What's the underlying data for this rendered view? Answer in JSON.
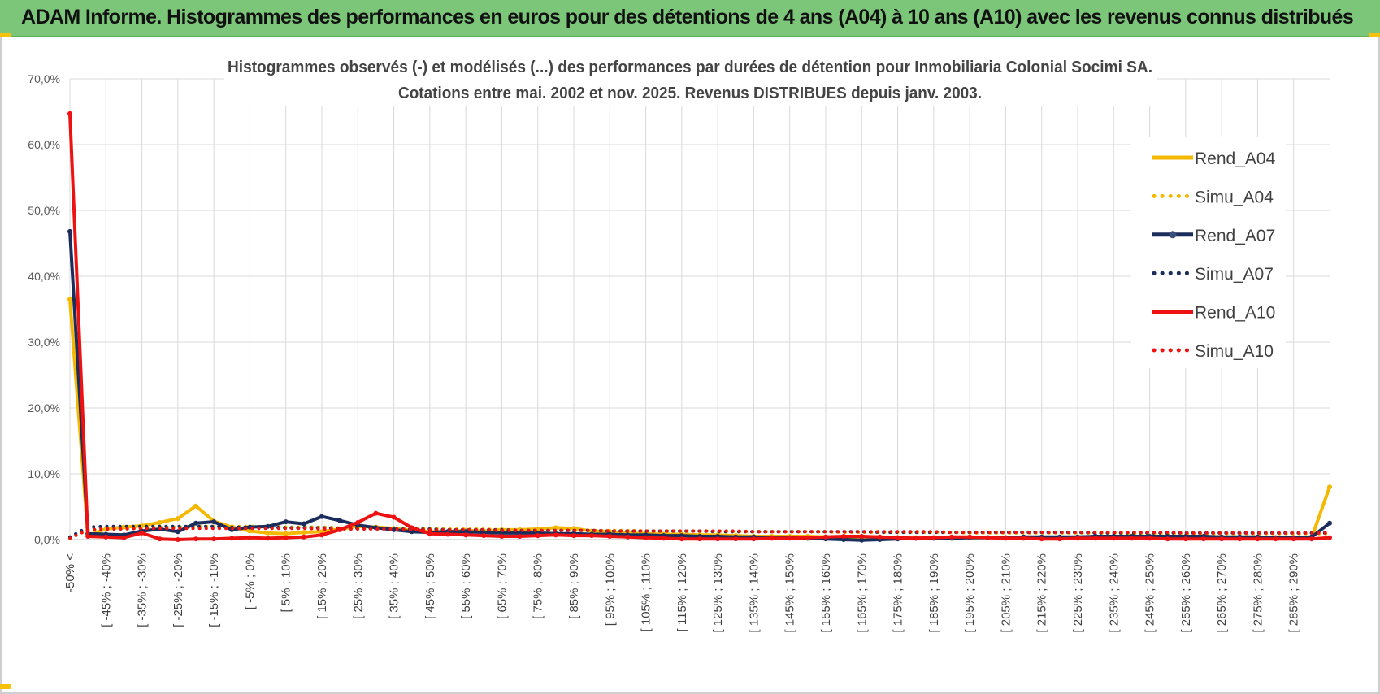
{
  "banner": {
    "title": "ADAM Informe. Histogrammes des performances en euros pour des détentions de 4 ans (A04) à 10 ans (A10) avec les revenus connus distribués"
  },
  "colors": {
    "banner_bg": "#7cc67a",
    "a04": "#f5b800",
    "a07": "#1b2d5c",
    "a10": "#ee1111",
    "grid": "#d9d9d9"
  },
  "chart_data": {
    "type": "line",
    "title": "Histogrammes observés (-) et modélisés (...) des performances par durées de détention pour Inmobiliaria Colonial Socimi SA.",
    "subtitle": "Cotations entre mai. 2002 et nov. 2025.  Revenus DISTRIBUES depuis janv. 2003.",
    "ylim": [
      0,
      70
    ],
    "y_ticks": [
      "0,0%",
      "10,0%",
      "20,0%",
      "30,0%",
      "40,0%",
      "50,0%",
      "60,0%",
      "70,0%"
    ],
    "y_unit": "%",
    "grid": true,
    "legend_position": "right",
    "x_tick_labels": [
      "-50% <",
      "[ -45% ; -40%",
      "[ -35% ; -30%",
      "[ -25% ; -20%",
      "[ -15% ; -10%",
      "[ -5% ; 0%",
      "[ 5% ; 10%",
      "[ 15% ; 20%",
      "[ 25% ; 30%",
      "[ 35% ; 40%",
      "[ 45% ; 50%",
      "[ 55% ; 60%",
      "[ 65% ; 70%",
      "[ 75% ; 80%",
      "[ 85% ; 90%",
      "[ 95% ; 100%",
      "[ 105% ; 110%",
      "[ 115% ; 120%",
      "[ 125% ; 130%",
      "[ 135% ; 140%",
      "[ 145% ; 150%",
      "[ 155% ; 160%",
      "[ 165% ; 170%",
      "[ 175% ; 180%",
      "[ 185% ; 190%",
      "[ 195% ; 200%",
      "[ 205% ; 210%",
      "[ 215% ; 220%",
      "[ 225% ; 230%",
      "[ 235% ; 240%",
      "[ 245% ; 250%",
      "[ 255% ; 260%",
      "[ 265% ; 270%",
      "[ 275% ; 280%",
      "[ 285% ; 290%"
    ],
    "x_tick_every": 2,
    "series": [
      {
        "name": "Rend_A04",
        "style": "solid",
        "color": "#f5b800",
        "values": [
          36.5,
          0.6,
          1.6,
          1.9,
          2.1,
          2.6,
          3.2,
          5.1,
          2.8,
          1.9,
          1.3,
          1.0,
          0.9,
          1.1,
          1.2,
          1.6,
          2.0,
          1.9,
          1.7,
          1.4,
          1.2,
          1.2,
          1.4,
          1.3,
          1.5,
          1.5,
          1.6,
          1.8,
          1.7,
          1.3,
          1.2,
          1.0,
          0.9,
          0.8,
          0.8,
          0.7,
          0.7,
          0.6,
          0.5,
          0.5,
          0.5,
          0.5,
          0.4,
          0.4,
          0.4,
          0.4,
          0.3,
          0.3,
          0.3,
          0.3,
          0.3,
          0.3,
          0.3,
          0.3,
          0.3,
          0.3,
          0.3,
          0.3,
          0.3,
          0.3,
          0.3,
          0.3,
          0.3,
          0.3,
          0.3,
          0.3,
          0.3,
          0.3,
          0.3,
          0.3,
          8.0
        ]
      },
      {
        "name": "Simu_A04",
        "style": "dotted",
        "color": "#f5b800",
        "values": [
          0.3,
          1.4,
          1.6,
          1.7,
          1.8,
          1.9,
          1.9,
          2.0,
          2.0,
          2.0,
          2.0,
          2.0,
          1.9,
          1.9,
          1.9,
          1.8,
          1.8,
          1.8,
          1.7,
          1.7,
          1.7,
          1.6,
          1.6,
          1.6,
          1.5,
          1.5,
          1.5,
          1.5,
          1.4,
          1.4,
          1.4,
          1.4,
          1.3,
          1.3,
          1.3,
          1.3,
          1.3,
          1.2,
          1.2,
          1.2,
          1.2,
          1.2,
          1.2,
          1.1,
          1.1,
          1.1,
          1.1,
          1.1,
          1.1,
          1.1,
          1.0,
          1.0,
          1.0,
          1.0,
          1.0,
          1.0,
          1.0,
          1.0,
          1.0,
          0.9,
          0.9,
          0.9,
          0.9,
          0.9,
          0.9,
          0.9,
          0.9,
          0.9,
          0.9,
          0.9,
          0.9
        ]
      },
      {
        "name": "Rend_A07",
        "style": "solid",
        "color": "#1b2d5c",
        "values": [
          46.8,
          0.9,
          0.8,
          0.7,
          1.3,
          1.6,
          1.2,
          2.5,
          2.7,
          1.5,
          1.9,
          2.0,
          2.7,
          2.4,
          3.5,
          2.9,
          2.2,
          1.8,
          1.5,
          1.2,
          1.1,
          1.2,
          1.2,
          1.1,
          1.0,
          1.0,
          1.0,
          0.9,
          0.9,
          0.8,
          0.8,
          0.7,
          0.7,
          0.6,
          0.6,
          0.5,
          0.5,
          0.4,
          0.4,
          0.3,
          0.3,
          0.2,
          0.1,
          0.0,
          -0.1,
          0.0,
          0.1,
          0.2,
          0.2,
          0.2,
          0.3,
          0.3,
          0.3,
          0.4,
          0.4,
          0.4,
          0.4,
          0.5,
          0.5,
          0.5,
          0.5,
          0.5,
          0.5,
          0.5,
          0.4,
          0.4,
          0.4,
          0.3,
          0.3,
          0.4,
          2.5
        ]
      },
      {
        "name": "Simu_A07",
        "style": "dotted",
        "color": "#1b2d5c",
        "values": [
          0.4,
          1.9,
          2.0,
          2.0,
          2.0,
          2.0,
          2.0,
          2.0,
          2.0,
          1.9,
          1.9,
          1.9,
          1.8,
          1.8,
          1.8,
          1.7,
          1.7,
          1.7,
          1.6,
          1.6,
          1.6,
          1.5,
          1.5,
          1.5,
          1.5,
          1.4,
          1.4,
          1.4,
          1.4,
          1.4,
          1.3,
          1.3,
          1.3,
          1.3,
          1.3,
          1.3,
          1.2,
          1.2,
          1.2,
          1.2,
          1.2,
          1.2,
          1.2,
          1.2,
          1.2,
          1.1,
          1.1,
          1.1,
          1.1,
          1.1,
          1.1,
          1.1,
          1.1,
          1.1,
          1.1,
          1.1,
          1.1,
          1.0,
          1.0,
          1.0,
          1.0,
          1.0,
          1.0,
          1.0,
          1.0,
          1.0,
          1.0,
          1.0,
          1.0,
          1.0,
          1.0
        ]
      },
      {
        "name": "Rend_A10",
        "style": "solid",
        "color": "#ee1111",
        "values": [
          64.7,
          0.5,
          0.4,
          0.3,
          1.0,
          0.1,
          0.0,
          0.1,
          0.1,
          0.2,
          0.3,
          0.2,
          0.3,
          0.4,
          0.7,
          1.5,
          2.6,
          4.0,
          3.4,
          1.8,
          0.9,
          0.8,
          0.7,
          0.6,
          0.5,
          0.5,
          0.6,
          0.7,
          0.6,
          0.6,
          0.5,
          0.4,
          0.3,
          0.2,
          0.1,
          0.1,
          0.1,
          0.1,
          0.1,
          0.2,
          0.2,
          0.3,
          0.4,
          0.5,
          0.5,
          0.4,
          0.3,
          0.2,
          0.3,
          0.4,
          0.4,
          0.3,
          0.2,
          0.2,
          0.1,
          0.1,
          0.2,
          0.2,
          0.2,
          0.2,
          0.2,
          0.1,
          0.1,
          0.1,
          0.1,
          0.1,
          0.1,
          0.1,
          0.1,
          0.1,
          0.3
        ]
      },
      {
        "name": "Simu_A10",
        "style": "dotted",
        "color": "#ee1111",
        "values": [
          0.2,
          1.5,
          1.6,
          1.6,
          1.7,
          1.7,
          1.7,
          1.7,
          1.7,
          1.7,
          1.7,
          1.7,
          1.7,
          1.7,
          1.6,
          1.6,
          1.6,
          1.6,
          1.6,
          1.5,
          1.5,
          1.5,
          1.5,
          1.5,
          1.4,
          1.4,
          1.4,
          1.4,
          1.4,
          1.4,
          1.3,
          1.3,
          1.3,
          1.3,
          1.3,
          1.3,
          1.3,
          1.3,
          1.2,
          1.2,
          1.2,
          1.2,
          1.2,
          1.2,
          1.2,
          1.2,
          1.2,
          1.2,
          1.2,
          1.1,
          1.1,
          1.1,
          1.1,
          1.1,
          1.1,
          1.1,
          1.1,
          1.1,
          1.1,
          1.1,
          1.1,
          1.1,
          1.0,
          1.0,
          1.0,
          1.0,
          1.0,
          1.0,
          1.0,
          1.0,
          1.0
        ]
      }
    ]
  }
}
